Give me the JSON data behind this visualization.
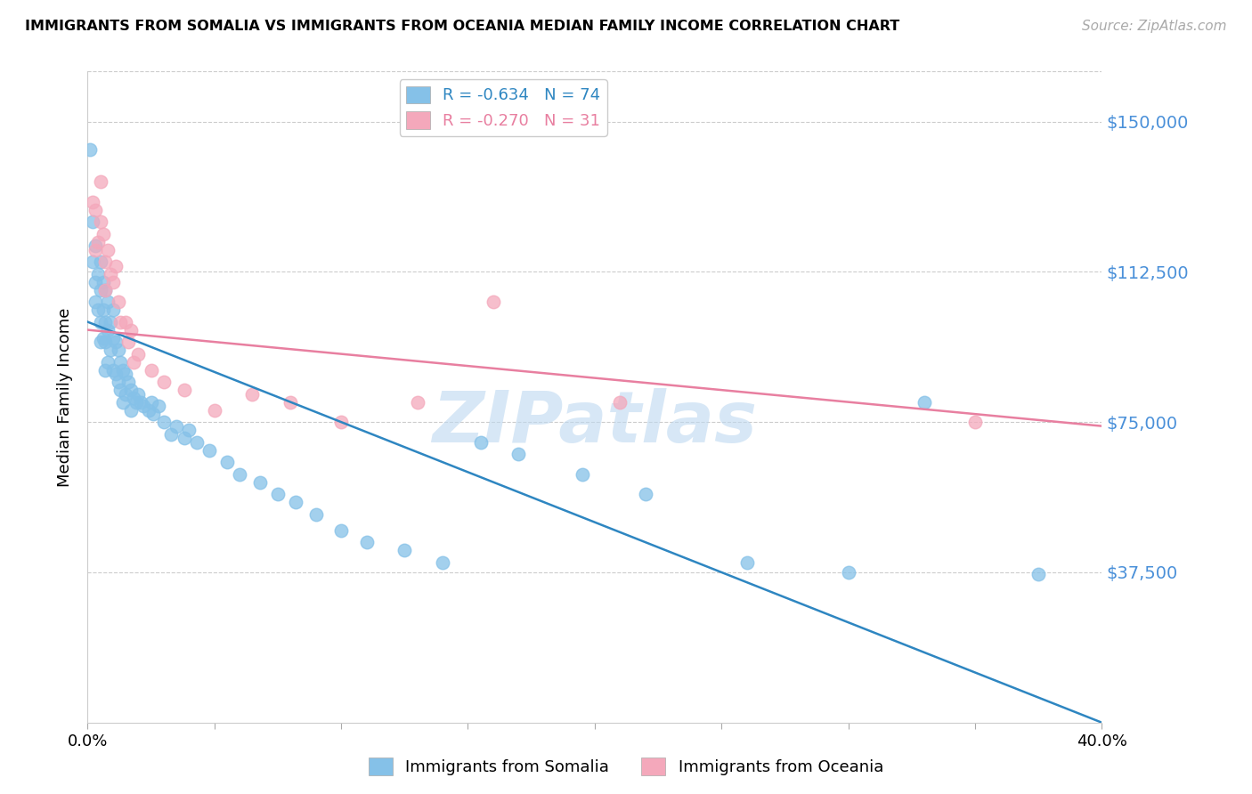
{
  "title": "IMMIGRANTS FROM SOMALIA VS IMMIGRANTS FROM OCEANIA MEDIAN FAMILY INCOME CORRELATION CHART",
  "source": "Source: ZipAtlas.com",
  "ylabel": "Median Family Income",
  "ytick_labels": [
    "$150,000",
    "$112,500",
    "$75,000",
    "$37,500"
  ],
  "ytick_values": [
    150000,
    112500,
    75000,
    37500
  ],
  "ylim": [
    0,
    162500
  ],
  "xlim": [
    0.0,
    0.4
  ],
  "xtick_positions": [
    0.0,
    0.05,
    0.1,
    0.15,
    0.2,
    0.25,
    0.3,
    0.35,
    0.4
  ],
  "somalia_R": "-0.634",
  "somalia_N": "74",
  "oceania_R": "-0.270",
  "oceania_N": "31",
  "somalia_color": "#85C1E8",
  "oceania_color": "#F4A8BB",
  "somalia_line_color": "#2E86C1",
  "oceania_line_color": "#E87FA0",
  "watermark": "ZIPatlas",
  "background_color": "#ffffff",
  "grid_color": "#cccccc",
  "ytick_color": "#4A90D9",
  "somalia_line_x0": 0.0,
  "somalia_line_y0": 100000,
  "somalia_line_x1": 0.4,
  "somalia_line_y1": 0,
  "oceania_line_x0": 0.0,
  "oceania_line_y0": 98000,
  "oceania_line_x1": 0.4,
  "oceania_line_y1": 74000,
  "somalia_scatter_x": [
    0.001,
    0.002,
    0.002,
    0.003,
    0.003,
    0.003,
    0.004,
    0.004,
    0.005,
    0.005,
    0.005,
    0.005,
    0.006,
    0.006,
    0.006,
    0.007,
    0.007,
    0.007,
    0.007,
    0.008,
    0.008,
    0.008,
    0.009,
    0.009,
    0.01,
    0.01,
    0.01,
    0.011,
    0.011,
    0.012,
    0.012,
    0.013,
    0.013,
    0.014,
    0.014,
    0.015,
    0.015,
    0.016,
    0.017,
    0.017,
    0.018,
    0.019,
    0.02,
    0.021,
    0.022,
    0.024,
    0.025,
    0.026,
    0.028,
    0.03,
    0.033,
    0.035,
    0.038,
    0.04,
    0.043,
    0.048,
    0.055,
    0.06,
    0.068,
    0.075,
    0.082,
    0.09,
    0.1,
    0.11,
    0.125,
    0.14,
    0.155,
    0.17,
    0.195,
    0.22,
    0.26,
    0.3,
    0.33,
    0.375
  ],
  "somalia_scatter_y": [
    143000,
    125000,
    115000,
    119000,
    110000,
    105000,
    112000,
    103000,
    115000,
    108000,
    100000,
    95000,
    110000,
    103000,
    96000,
    108000,
    100000,
    95000,
    88000,
    105000,
    98000,
    90000,
    100000,
    93000,
    103000,
    96000,
    88000,
    95000,
    87000,
    93000,
    85000,
    90000,
    83000,
    88000,
    80000,
    87000,
    82000,
    85000,
    83000,
    78000,
    81000,
    80000,
    82000,
    80000,
    79000,
    78000,
    80000,
    77000,
    79000,
    75000,
    72000,
    74000,
    71000,
    73000,
    70000,
    68000,
    65000,
    62000,
    60000,
    57000,
    55000,
    52000,
    48000,
    45000,
    43000,
    40000,
    70000,
    67000,
    62000,
    57000,
    40000,
    37500,
    80000,
    37000
  ],
  "oceania_scatter_x": [
    0.002,
    0.003,
    0.003,
    0.004,
    0.005,
    0.005,
    0.006,
    0.007,
    0.007,
    0.008,
    0.009,
    0.01,
    0.011,
    0.012,
    0.013,
    0.015,
    0.016,
    0.017,
    0.018,
    0.02,
    0.025,
    0.03,
    0.038,
    0.05,
    0.065,
    0.08,
    0.1,
    0.13,
    0.16,
    0.21,
    0.35
  ],
  "oceania_scatter_y": [
    130000,
    128000,
    118000,
    120000,
    135000,
    125000,
    122000,
    115000,
    108000,
    118000,
    112000,
    110000,
    114000,
    105000,
    100000,
    100000,
    95000,
    98000,
    90000,
    92000,
    88000,
    85000,
    83000,
    78000,
    82000,
    80000,
    75000,
    80000,
    105000,
    80000,
    75000
  ]
}
